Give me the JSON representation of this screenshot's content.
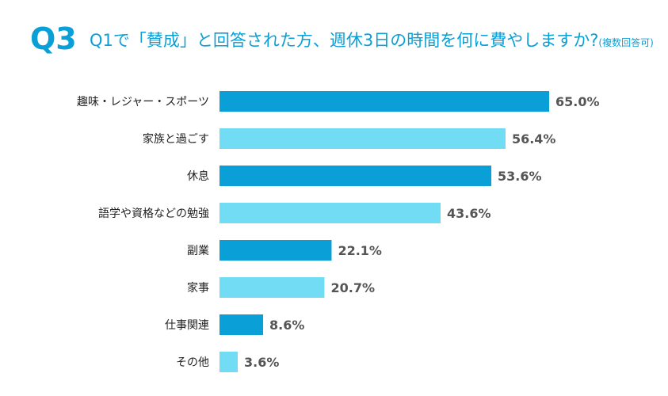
{
  "header": {
    "badge": "Q3",
    "question": "Q1で「賛成」と回答された方、週休3日の時間を何に費やしますか?",
    "note": "(複数回答可)"
  },
  "colors": {
    "accent": "#0a9fd6",
    "bar_dark": "#0a9fd6",
    "bar_light": "#72dcf4"
  },
  "chart_data": {
    "type": "bar",
    "orientation": "horizontal",
    "title": "Q1で「賛成」と回答された方、週休3日の時間を何に費やしますか?(複数回答可)",
    "unit": "%",
    "xlim": [
      0,
      65
    ],
    "grid": false,
    "categories": [
      "趣味・レジャー・スポーツ",
      "家族と過ごす",
      "休息",
      "語学や資格などの勉強",
      "副業",
      "家事",
      "仕事関連",
      "その他"
    ],
    "values": [
      65.0,
      56.4,
      53.6,
      43.6,
      22.1,
      20.7,
      8.6,
      3.6
    ],
    "value_labels": [
      "65.0%",
      "56.4%",
      "53.6%",
      "43.6%",
      "22.1%",
      "20.7%",
      "8.6%",
      "3.6%"
    ]
  }
}
